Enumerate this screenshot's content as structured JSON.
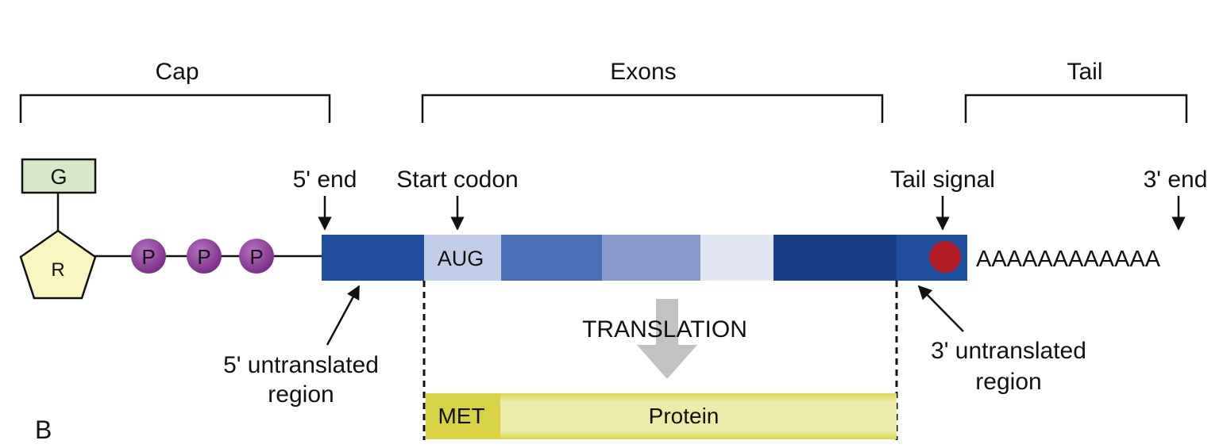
{
  "panel_label": "B",
  "brackets": {
    "cap": "Cap",
    "exons": "Exons",
    "tail": "Tail"
  },
  "cap_structure": {
    "base": "G",
    "sugar": "R",
    "phosphates": [
      "P",
      "P",
      "P"
    ]
  },
  "markers": {
    "five_prime_end": "5' end",
    "start_codon": "Start codon",
    "tail_signal": "Tail signal",
    "three_prime_end": "3' end"
  },
  "mrna": {
    "codon": "AUG",
    "poly_a": "AAAAAAAAAAAA"
  },
  "regions": {
    "utr5_line1": "5' untranslated",
    "utr5_line2": "region",
    "utr3_line1": "3' untranslated",
    "utr3_line2": "region"
  },
  "process": "TRANSLATION",
  "protein": {
    "met": "MET",
    "label": "Protein"
  },
  "colors": {
    "utr5": "#1f4e9c",
    "aug": "#c3cde8",
    "exon2": "#4a6fb5",
    "exon3": "#8899cc",
    "exon4": "#e3e7f3",
    "exon5": "#1a3f85",
    "utr3": "#1f4e9c",
    "tail_signal": "#b01c25",
    "phosphate": "#8a3f96",
    "poly_a_text": "#2150a0",
    "protein": "#e9e89c",
    "met": "#d8d346",
    "translation_arrow": "#c2c2c2",
    "g_box": "#d6e8c8",
    "ribose": "#f9f6c1"
  }
}
